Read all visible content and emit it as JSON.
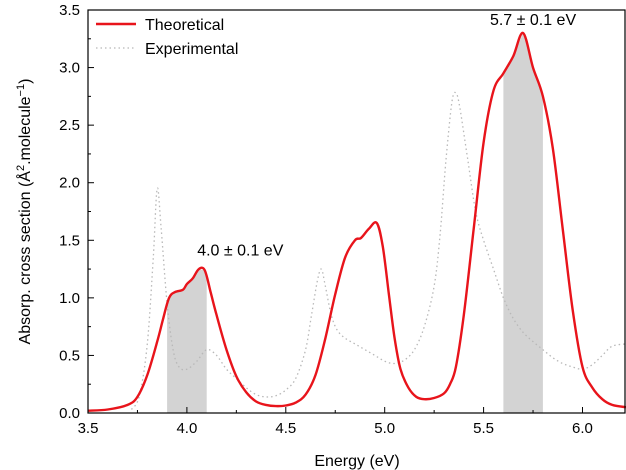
{
  "chart_data": {
    "type": "line",
    "xlabel": "Energy (eV)",
    "ylabel_main": "Absorp. cross section (Å",
    "ylabel_sup1": "2",
    "ylabel_mid": ".molecule",
    "ylabel_sup2": "−1",
    "ylabel_end": ")",
    "xlim": [
      3.5,
      6.22
    ],
    "ylim": [
      0,
      3.5
    ],
    "xticks": [
      3.5,
      4.0,
      4.5,
      5.0,
      5.5,
      6.0
    ],
    "xtick_labels": [
      "3.5",
      "4.0",
      "4.5",
      "5.0",
      "5.5",
      "6.0"
    ],
    "yticks": [
      0.0,
      0.5,
      1.0,
      1.5,
      2.0,
      2.5,
      3.0,
      3.5
    ],
    "ytick_labels": [
      "0.0",
      "0.5",
      "1.0",
      "1.5",
      "2.0",
      "2.5",
      "3.0",
      "3.5"
    ],
    "legend_position": "top-left",
    "grid": false,
    "series": [
      {
        "name": "Theoretical",
        "color": "#e8141b",
        "style": "solid",
        "x": [
          3.5,
          3.6,
          3.7,
          3.75,
          3.8,
          3.85,
          3.88,
          3.91,
          3.94,
          3.98,
          4.0,
          4.03,
          4.06,
          4.09,
          4.12,
          4.15,
          4.2,
          4.25,
          4.3,
          4.35,
          4.4,
          4.45,
          4.5,
          4.55,
          4.6,
          4.65,
          4.7,
          4.75,
          4.8,
          4.85,
          4.88,
          4.92,
          4.96,
          4.99,
          5.02,
          5.05,
          5.08,
          5.12,
          5.16,
          5.2,
          5.25,
          5.3,
          5.33,
          5.36,
          5.4,
          5.45,
          5.5,
          5.55,
          5.6,
          5.65,
          5.7,
          5.75,
          5.8,
          5.85,
          5.9,
          5.95,
          6.0,
          6.05,
          6.1,
          6.15,
          6.22
        ],
        "y": [
          0.02,
          0.03,
          0.07,
          0.14,
          0.33,
          0.62,
          0.82,
          1.0,
          1.05,
          1.07,
          1.12,
          1.17,
          1.25,
          1.24,
          1.05,
          0.85,
          0.55,
          0.32,
          0.18,
          0.1,
          0.07,
          0.06,
          0.065,
          0.09,
          0.16,
          0.33,
          0.65,
          1.03,
          1.35,
          1.5,
          1.52,
          1.6,
          1.65,
          1.45,
          1.05,
          0.65,
          0.38,
          0.22,
          0.14,
          0.12,
          0.13,
          0.17,
          0.25,
          0.4,
          0.85,
          1.6,
          2.35,
          2.8,
          2.95,
          3.1,
          3.3,
          3.0,
          2.75,
          2.3,
          1.6,
          0.9,
          0.4,
          0.22,
          0.12,
          0.07,
          0.05
        ]
      },
      {
        "name": "Experimental",
        "color": "#b8b8b8",
        "style": "dotted",
        "x": [
          3.72,
          3.76,
          3.8,
          3.83,
          3.85,
          3.87,
          3.9,
          3.93,
          3.96,
          4.0,
          4.05,
          4.1,
          4.15,
          4.2,
          4.25,
          4.3,
          4.35,
          4.4,
          4.45,
          4.5,
          4.55,
          4.6,
          4.63,
          4.66,
          4.68,
          4.7,
          4.73,
          4.76,
          4.8,
          4.85,
          4.9,
          4.95,
          5.0,
          5.05,
          5.1,
          5.15,
          5.2,
          5.25,
          5.28,
          5.31,
          5.34,
          5.36,
          5.38,
          5.42,
          5.46,
          5.5,
          5.55,
          5.6,
          5.65,
          5.7,
          5.75,
          5.8,
          5.85,
          5.9,
          5.95,
          6.0,
          6.05,
          6.1,
          6.15,
          6.22
        ],
        "y": [
          0.03,
          0.15,
          0.6,
          1.35,
          1.95,
          1.6,
          0.95,
          0.55,
          0.4,
          0.38,
          0.45,
          0.55,
          0.5,
          0.38,
          0.3,
          0.22,
          0.16,
          0.14,
          0.15,
          0.2,
          0.3,
          0.55,
          0.85,
          1.15,
          1.25,
          1.1,
          0.85,
          0.72,
          0.65,
          0.6,
          0.55,
          0.5,
          0.45,
          0.43,
          0.46,
          0.55,
          0.75,
          1.1,
          1.55,
          2.2,
          2.7,
          2.78,
          2.65,
          2.2,
          1.75,
          1.5,
          1.25,
          1.0,
          0.82,
          0.7,
          0.62,
          0.55,
          0.48,
          0.43,
          0.4,
          0.38,
          0.42,
          0.5,
          0.58,
          0.6
        ]
      }
    ],
    "shaded_regions": [
      {
        "x_start": 3.9,
        "x_end": 4.1,
        "color": "#d3d3d3"
      },
      {
        "x_start": 5.6,
        "x_end": 5.8,
        "color": "#d3d3d3"
      }
    ],
    "annotations": [
      {
        "text": "4.0 ± 0.1 eV",
        "x": 4.27,
        "y": 1.37
      },
      {
        "text": "5.7 ± 0.1 eV",
        "x": 5.75,
        "y": 3.37
      }
    ]
  }
}
